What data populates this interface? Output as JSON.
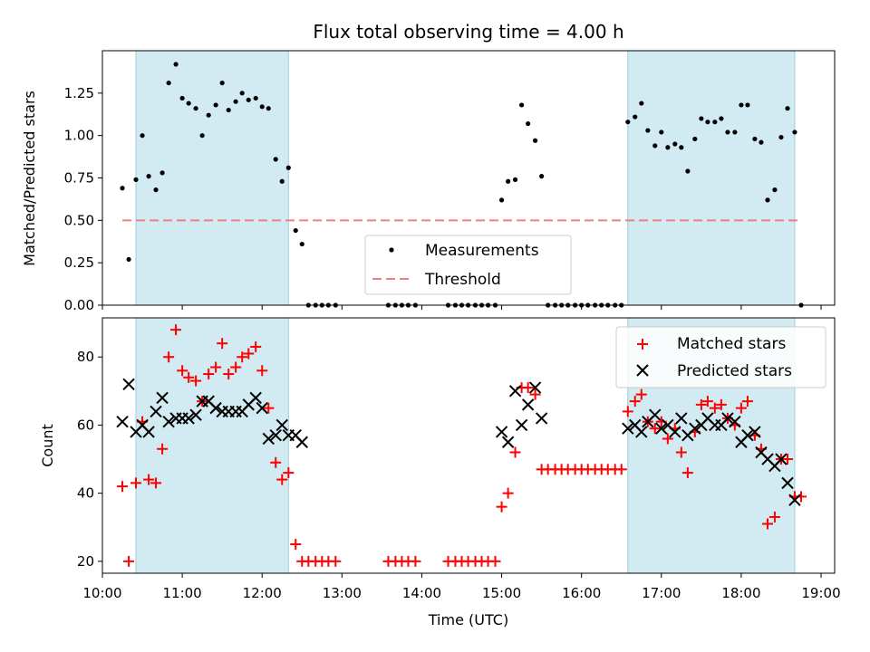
{
  "chart_data": {
    "type": "scatter",
    "title": "Flux total observing time = 4.00 h",
    "colors": {
      "measurements": "#000000",
      "threshold": "#f08080",
      "matched": "#ff0000",
      "predicted": "#000000",
      "shade": "#add8e6"
    },
    "shaded_intervals_hours": [
      [
        10.42,
        12.33
      ],
      [
        16.58,
        18.67
      ]
    ],
    "x_axis": {
      "label": "Time (UTC)",
      "range_hours": [
        10.0,
        19.17
      ],
      "ticks": [
        {
          "hour": 10,
          "label": "10:00"
        },
        {
          "hour": 11,
          "label": "11:00"
        },
        {
          "hour": 12,
          "label": "12:00"
        },
        {
          "hour": 13,
          "label": "13:00"
        },
        {
          "hour": 14,
          "label": "14:00"
        },
        {
          "hour": 15,
          "label": "15:00"
        },
        {
          "hour": 16,
          "label": "16:00"
        },
        {
          "hour": 17,
          "label": "17:00"
        },
        {
          "hour": 18,
          "label": "18:00"
        },
        {
          "hour": 19,
          "label": "19:00"
        }
      ]
    },
    "top": {
      "ylabel": "Matched/Predicted stars",
      "ylim": [
        0,
        1.5
      ],
      "yticks": [
        {
          "value": 0.0,
          "label": "0.00"
        },
        {
          "value": 0.25,
          "label": "0.25"
        },
        {
          "value": 0.5,
          "label": "0.50"
        },
        {
          "value": 0.75,
          "label": "0.75"
        },
        {
          "value": 1.0,
          "label": "1.00"
        },
        {
          "value": 1.25,
          "label": "1.25"
        }
      ],
      "threshold": {
        "name": "Threshold",
        "value": 0.5,
        "x_range": [
          10.25,
          18.75
        ]
      },
      "measurements": {
        "name": "Measurements",
        "points": [
          [
            10.25,
            0.69
          ],
          [
            10.33,
            0.27
          ],
          [
            10.42,
            0.74
          ],
          [
            10.5,
            1.0
          ],
          [
            10.58,
            0.76
          ],
          [
            10.67,
            0.68
          ],
          [
            10.75,
            0.78
          ],
          [
            10.83,
            1.31
          ],
          [
            10.92,
            1.42
          ],
          [
            11.0,
            1.22
          ],
          [
            11.08,
            1.19
          ],
          [
            11.17,
            1.16
          ],
          [
            11.25,
            1.0
          ],
          [
            11.33,
            1.12
          ],
          [
            11.42,
            1.18
          ],
          [
            11.5,
            1.31
          ],
          [
            11.58,
            1.15
          ],
          [
            11.67,
            1.2
          ],
          [
            11.75,
            1.25
          ],
          [
            11.83,
            1.21
          ],
          [
            11.92,
            1.22
          ],
          [
            12.0,
            1.17
          ],
          [
            12.08,
            1.16
          ],
          [
            12.17,
            0.86
          ],
          [
            12.25,
            0.73
          ],
          [
            12.33,
            0.81
          ],
          [
            12.42,
            0.44
          ],
          [
            12.5,
            0.36
          ],
          [
            12.58,
            0.0
          ],
          [
            12.67,
            0.0
          ],
          [
            12.75,
            0.0
          ],
          [
            12.83,
            0.0
          ],
          [
            12.92,
            0.0
          ],
          [
            13.58,
            0.0
          ],
          [
            13.67,
            0.0
          ],
          [
            13.75,
            0.0
          ],
          [
            13.83,
            0.0
          ],
          [
            13.92,
            0.0
          ],
          [
            14.33,
            0.0
          ],
          [
            14.42,
            0.0
          ],
          [
            14.5,
            0.0
          ],
          [
            14.58,
            0.0
          ],
          [
            14.67,
            0.0
          ],
          [
            14.75,
            0.0
          ],
          [
            14.83,
            0.0
          ],
          [
            14.92,
            0.0
          ],
          [
            15.0,
            0.62
          ],
          [
            15.08,
            0.73
          ],
          [
            15.17,
            0.74
          ],
          [
            15.25,
            1.18
          ],
          [
            15.33,
            1.07
          ],
          [
            15.42,
            0.97
          ],
          [
            15.5,
            0.76
          ],
          [
            15.58,
            0.0
          ],
          [
            15.67,
            0.0
          ],
          [
            15.75,
            0.0
          ],
          [
            15.83,
            0.0
          ],
          [
            15.92,
            0.0
          ],
          [
            16.0,
            0.0
          ],
          [
            16.08,
            0.0
          ],
          [
            16.17,
            0.0
          ],
          [
            16.25,
            0.0
          ],
          [
            16.33,
            0.0
          ],
          [
            16.42,
            0.0
          ],
          [
            16.5,
            0.0
          ],
          [
            16.58,
            1.08
          ],
          [
            16.67,
            1.11
          ],
          [
            16.75,
            1.19
          ],
          [
            16.83,
            1.03
          ],
          [
            16.92,
            0.94
          ],
          [
            17.0,
            1.02
          ],
          [
            17.08,
            0.93
          ],
          [
            17.17,
            0.95
          ],
          [
            17.25,
            0.93
          ],
          [
            17.33,
            0.79
          ],
          [
            17.42,
            0.98
          ],
          [
            17.5,
            1.1
          ],
          [
            17.58,
            1.08
          ],
          [
            17.67,
            1.08
          ],
          [
            17.75,
            1.1
          ],
          [
            17.83,
            1.02
          ],
          [
            17.92,
            1.02
          ],
          [
            18.0,
            1.18
          ],
          [
            18.08,
            1.18
          ],
          [
            18.17,
            0.98
          ],
          [
            18.25,
            0.96
          ],
          [
            18.33,
            0.62
          ],
          [
            18.42,
            0.68
          ],
          [
            18.5,
            0.99
          ],
          [
            18.58,
            1.16
          ],
          [
            18.67,
            1.02
          ],
          [
            18.75,
            0.0
          ]
        ]
      }
    },
    "bottom": {
      "ylabel": "Count",
      "ylim": [
        16.5,
        91.5
      ],
      "yticks": [
        {
          "value": 20,
          "label": "20"
        },
        {
          "value": 40,
          "label": "40"
        },
        {
          "value": 60,
          "label": "60"
        },
        {
          "value": 80,
          "label": "80"
        }
      ],
      "matched": {
        "name": "Matched stars",
        "points": [
          [
            10.25,
            42
          ],
          [
            10.33,
            20
          ],
          [
            10.42,
            43
          ],
          [
            10.5,
            61
          ],
          [
            10.58,
            44
          ],
          [
            10.67,
            43
          ],
          [
            10.75,
            53
          ],
          [
            10.83,
            80
          ],
          [
            10.92,
            88
          ],
          [
            11.0,
            76
          ],
          [
            11.08,
            74
          ],
          [
            11.17,
            73
          ],
          [
            11.25,
            67
          ],
          [
            11.33,
            75
          ],
          [
            11.42,
            77
          ],
          [
            11.5,
            84
          ],
          [
            11.58,
            75
          ],
          [
            11.67,
            77
          ],
          [
            11.75,
            80
          ],
          [
            11.83,
            81
          ],
          [
            11.92,
            83
          ],
          [
            12.0,
            76
          ],
          [
            12.08,
            65
          ],
          [
            12.17,
            49
          ],
          [
            12.25,
            44
          ],
          [
            12.33,
            46
          ],
          [
            12.42,
            25
          ],
          [
            12.5,
            20
          ],
          [
            12.58,
            20
          ],
          [
            12.67,
            20
          ],
          [
            12.75,
            20
          ],
          [
            12.83,
            20
          ],
          [
            12.92,
            20
          ],
          [
            13.58,
            20
          ],
          [
            13.67,
            20
          ],
          [
            13.75,
            20
          ],
          [
            13.83,
            20
          ],
          [
            13.92,
            20
          ],
          [
            14.33,
            20
          ],
          [
            14.42,
            20
          ],
          [
            14.5,
            20
          ],
          [
            14.58,
            20
          ],
          [
            14.67,
            20
          ],
          [
            14.75,
            20
          ],
          [
            14.83,
            20
          ],
          [
            14.92,
            20
          ],
          [
            15.0,
            36
          ],
          [
            15.08,
            40
          ],
          [
            15.17,
            52
          ],
          [
            15.25,
            71
          ],
          [
            15.33,
            71
          ],
          [
            15.42,
            69
          ],
          [
            15.5,
            47
          ],
          [
            15.58,
            47
          ],
          [
            15.67,
            47
          ],
          [
            15.75,
            47
          ],
          [
            15.83,
            47
          ],
          [
            15.92,
            47
          ],
          [
            16.0,
            47
          ],
          [
            16.08,
            47
          ],
          [
            16.17,
            47
          ],
          [
            16.25,
            47
          ],
          [
            16.33,
            47
          ],
          [
            16.42,
            47
          ],
          [
            16.5,
            47
          ],
          [
            16.58,
            64
          ],
          [
            16.67,
            67
          ],
          [
            16.75,
            69
          ],
          [
            16.83,
            61
          ],
          [
            16.92,
            59
          ],
          [
            17.0,
            61
          ],
          [
            17.08,
            56
          ],
          [
            17.17,
            59
          ],
          [
            17.25,
            52
          ],
          [
            17.33,
            46
          ],
          [
            17.42,
            58
          ],
          [
            17.5,
            66
          ],
          [
            17.58,
            67
          ],
          [
            17.67,
            65
          ],
          [
            17.75,
            66
          ],
          [
            17.83,
            62
          ],
          [
            17.92,
            60
          ],
          [
            18.0,
            65
          ],
          [
            18.08,
            67
          ],
          [
            18.17,
            57
          ],
          [
            18.25,
            53
          ],
          [
            18.33,
            31
          ],
          [
            18.42,
            33
          ],
          [
            18.5,
            50
          ],
          [
            18.58,
            50
          ],
          [
            18.67,
            39
          ],
          [
            18.75,
            39
          ]
        ]
      },
      "predicted": {
        "name": "Predicted stars",
        "points": [
          [
            10.25,
            61
          ],
          [
            10.33,
            72
          ],
          [
            10.42,
            58
          ],
          [
            10.5,
            60
          ],
          [
            10.58,
            58
          ],
          [
            10.67,
            64
          ],
          [
            10.75,
            68
          ],
          [
            10.83,
            61
          ],
          [
            10.92,
            62
          ],
          [
            11.0,
            62
          ],
          [
            11.08,
            62
          ],
          [
            11.17,
            63
          ],
          [
            11.25,
            67
          ],
          [
            11.33,
            67
          ],
          [
            11.42,
            65
          ],
          [
            11.5,
            64
          ],
          [
            11.58,
            64
          ],
          [
            11.67,
            64
          ],
          [
            11.75,
            64
          ],
          [
            11.83,
            66
          ],
          [
            11.92,
            68
          ],
          [
            12.0,
            65
          ],
          [
            12.08,
            56
          ],
          [
            12.17,
            57
          ],
          [
            12.25,
            60
          ],
          [
            12.33,
            57
          ],
          [
            12.42,
            57
          ],
          [
            12.5,
            55
          ],
          [
            15.0,
            58
          ],
          [
            15.08,
            55
          ],
          [
            15.17,
            70
          ],
          [
            15.25,
            60
          ],
          [
            15.33,
            66
          ],
          [
            15.42,
            71
          ],
          [
            15.5,
            62
          ],
          [
            16.58,
            59
          ],
          [
            16.67,
            60
          ],
          [
            16.75,
            58
          ],
          [
            16.83,
            61
          ],
          [
            16.92,
            63
          ],
          [
            17.0,
            59
          ],
          [
            17.08,
            60
          ],
          [
            17.17,
            58
          ],
          [
            17.25,
            62
          ],
          [
            17.33,
            57
          ],
          [
            17.42,
            59
          ],
          [
            17.5,
            60
          ],
          [
            17.58,
            62
          ],
          [
            17.67,
            60
          ],
          [
            17.75,
            60
          ],
          [
            17.83,
            62
          ],
          [
            17.92,
            61
          ],
          [
            18.0,
            55
          ],
          [
            18.08,
            57
          ],
          [
            18.17,
            58
          ],
          [
            18.25,
            52
          ],
          [
            18.33,
            50
          ],
          [
            18.42,
            48
          ],
          [
            18.5,
            50
          ],
          [
            18.58,
            43
          ],
          [
            18.67,
            38
          ]
        ]
      }
    }
  }
}
